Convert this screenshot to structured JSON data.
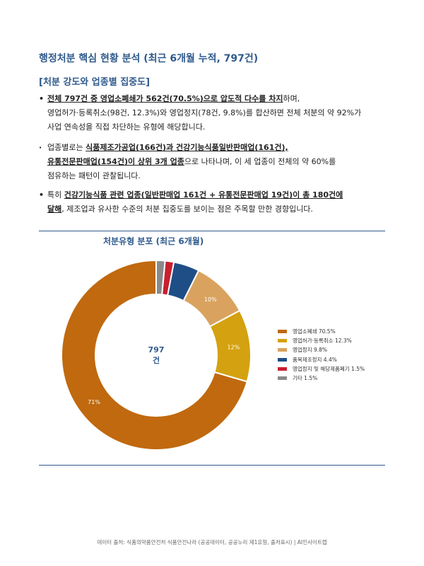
{
  "page": {
    "title": "행정처분 핵심 현황 분석 (최근 6개월 누적, 797건)",
    "section_heading": "[처분 강도와 업종별 집중도]"
  },
  "bullets": [
    {
      "marker": "•",
      "line1_bold": "전체 797건 중 영업소폐쇄가 562건(70.5%)으로 압도적 다수를 차지",
      "line1_rest": "하며,",
      "line2": "영업허가·등록취소(98건, 12.3%)와 영업정지(78건, 9.8%)를 합산하면 전체 처분의 약 92%가",
      "line3": "사업 연속성을 직접 차단하는 유형에 해당합니다."
    },
    {
      "marker": "·",
      "line1_pre": "업종별로는 ",
      "line1_bold": "식품제조가공업(166건)과 건강기능식품일반판매업(161건),",
      "line2_bold": "유통전문판매업(154건)이 상위 3개 업종",
      "line2_rest": "으로 나타나며, 이 세 업종이 전체의 약 60%를",
      "line3": "점유하는 패턴이 관찰됩니다."
    },
    {
      "marker": "•",
      "line1_pre": "특히 ",
      "line1_bold": "건강기능식품 관련 업종(일반판매업 161건 + 유통전문판매업 19건)이 총 180건에",
      "line2_bold": "달해",
      "line2_rest": ", 제조업과 유사한 수준의 처분 집중도를 보이는 점은 주목할 만한 경향입니다."
    }
  ],
  "chart_data": {
    "type": "pie",
    "title": "처분유형 분포 (최근 6개월)",
    "center_label": {
      "value": "797",
      "unit": "건"
    },
    "slices": [
      {
        "name": "영업소폐쇄",
        "percent": 70.5,
        "color": "#c0690f",
        "legend_label": "영업소폐쇄  70.5%",
        "data_label": "71%"
      },
      {
        "name": "영업허가·등록취소",
        "percent": 12.3,
        "color": "#d4a110",
        "legend_label": "영업허가·등록취소  12.3%",
        "data_label": "12%"
      },
      {
        "name": "영업정지",
        "percent": 9.8,
        "color": "#d9a35f",
        "legend_label": "영업정지  9.8%",
        "data_label": "10%"
      },
      {
        "name": "품목제조정지",
        "percent": 4.4,
        "color": "#1f4e87",
        "legend_label": "품목제조정지  4.4%",
        "data_label": ""
      },
      {
        "name": "영업정지 및 해당제품폐기",
        "percent": 1.5,
        "color": "#c8202f",
        "legend_label": "영업정지 및 해당제품폐기  1.5%",
        "data_label": ""
      },
      {
        "name": "기타",
        "percent": 1.5,
        "color": "#8a8a8a",
        "legend_label": "기타  1.5%",
        "data_label": ""
      }
    ],
    "legend_position": "right"
  },
  "footer": {
    "text": "데이터 출처: 식품의약품안전처 식품안전나라 (공공데이터, 공공누리 제1유형, 출처표시)  |  AI인사이트랩"
  }
}
